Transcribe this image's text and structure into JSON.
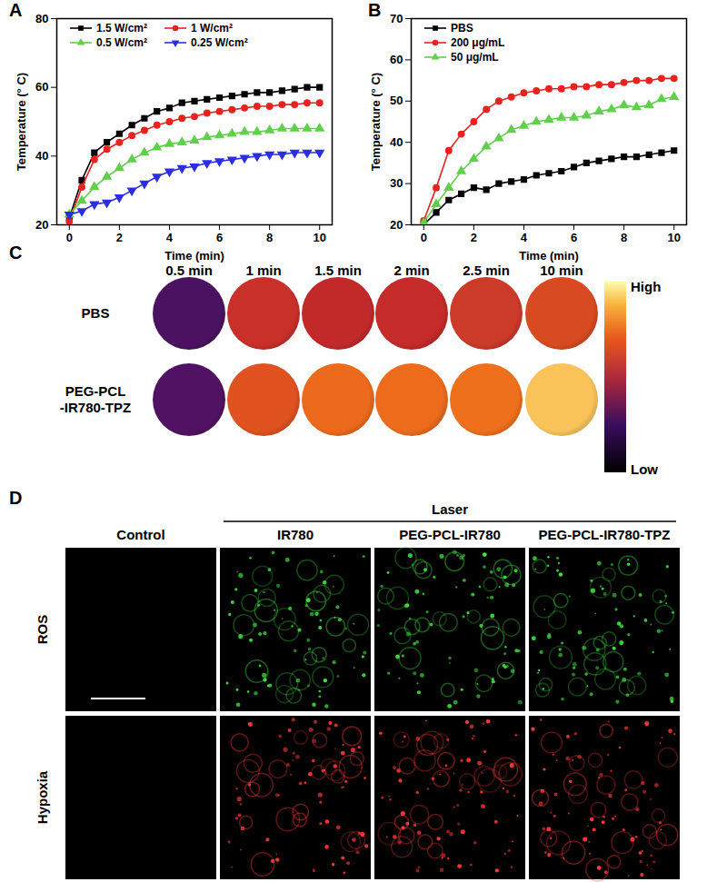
{
  "chart_data": [
    {
      "panel": "A",
      "type": "line",
      "x_label": "Time (min)",
      "y_label": "Temperature (° C)",
      "x": [
        0,
        0.5,
        1,
        1.5,
        2,
        2.5,
        3,
        3.5,
        4,
        4.5,
        5,
        5.5,
        6,
        6.5,
        7,
        7.5,
        8,
        8.5,
        9,
        9.5,
        10
      ],
      "xlim": [
        -0.5,
        10.5
      ],
      "xticks": [
        0,
        2,
        4,
        6,
        8,
        10
      ],
      "ylim": [
        20,
        80
      ],
      "yticks": [
        20,
        40,
        60,
        80
      ],
      "legend": "top-left",
      "series": [
        {
          "name": "1.5 W/cm²",
          "color": "#000000",
          "marker": "square",
          "values": [
            22,
            33,
            41,
            44,
            46.5,
            49,
            51,
            53,
            54,
            55.5,
            56,
            56.5,
            57,
            57.5,
            58,
            58.5,
            58.5,
            59,
            59.5,
            60,
            60
          ]
        },
        {
          "name": "1 W/cm²",
          "color": "#e8231f",
          "marker": "circle",
          "values": [
            21,
            31,
            39,
            42,
            44,
            46,
            47.5,
            49,
            50,
            51,
            51.5,
            52.5,
            53,
            53.5,
            54,
            54.5,
            54.5,
            55,
            55,
            55.5,
            55.5
          ]
        },
        {
          "name": "0.5 W/cm²",
          "color": "#5fd04a",
          "marker": "triangle",
          "values": [
            23,
            27,
            31,
            34,
            36.5,
            39,
            41,
            42.5,
            43.5,
            44,
            44.5,
            45.5,
            46,
            46.5,
            47,
            47,
            47.5,
            48,
            48,
            48,
            48
          ]
        },
        {
          "name": "0.25 W/cm²",
          "color": "#2b2ee0",
          "marker": "triangle-down",
          "values": [
            23,
            24,
            26,
            26.5,
            28,
            30,
            32,
            34,
            35.5,
            36.5,
            37,
            38,
            38.5,
            39,
            39.5,
            40,
            40.5,
            40.5,
            41,
            41,
            41
          ]
        }
      ]
    },
    {
      "panel": "B",
      "type": "line",
      "x_label": "Time (min)",
      "y_label": "Temperature (° C)",
      "x": [
        0,
        0.5,
        1,
        1.5,
        2,
        2.5,
        3,
        3.5,
        4,
        4.5,
        5,
        5.5,
        6,
        6.5,
        7,
        7.5,
        8,
        8.5,
        9,
        9.5,
        10
      ],
      "xlim": [
        -0.5,
        10.5
      ],
      "xticks": [
        0,
        2,
        4,
        6,
        8,
        10
      ],
      "ylim": [
        20,
        70
      ],
      "yticks": [
        20,
        30,
        40,
        50,
        60,
        70
      ],
      "legend": "top-left",
      "series": [
        {
          "name": "PBS",
          "color": "#000000",
          "marker": "square",
          "values": [
            20,
            23,
            26,
            27.5,
            29,
            28.5,
            30,
            30.5,
            31,
            32,
            32.5,
            33,
            34,
            35,
            35.5,
            36,
            36.5,
            36.5,
            37,
            37.5,
            38
          ]
        },
        {
          "name": "200 μg/mL",
          "color": "#e8231f",
          "marker": "circle",
          "values": [
            21,
            29,
            38,
            42,
            45,
            48,
            50,
            51,
            52,
            52.5,
            53,
            53,
            53.5,
            53.5,
            54,
            54,
            54.5,
            55,
            55,
            55.5,
            55.5
          ]
        },
        {
          "name": "50 μg/mL",
          "color": "#5fd04a",
          "marker": "triangle",
          "values": [
            20.5,
            25,
            29,
            33,
            36,
            39,
            41,
            43,
            44,
            45,
            45.5,
            46,
            46,
            46.5,
            47.5,
            48,
            49,
            48.5,
            49,
            50.5,
            51
          ]
        }
      ]
    }
  ],
  "thermal_images": {
    "panel": "C",
    "times": [
      "0.5 min",
      "1 min",
      "1.5 min",
      "2 min",
      "2.5 min",
      "10 min"
    ],
    "rows": [
      {
        "label_lines": [
          "PBS"
        ],
        "colors": [
          "#4c1262",
          "#c9302a",
          "#c22a2a",
          "#c42b2a",
          "#cc3a2a",
          "#d84a22"
        ]
      },
      {
        "label_lines": [
          "PEG-PCL",
          "-IR780-TPZ"
        ],
        "colors": [
          "#521263",
          "#e0521f",
          "#ec6a1c",
          "#ec6c1c",
          "#ef701c",
          "#f9c35a"
        ]
      }
    ],
    "colorbar": {
      "high": "High",
      "low": "Low"
    }
  },
  "microscopy": {
    "panel": "D",
    "group_label": "Laser",
    "columns": [
      {
        "label": "Control",
        "laser": false
      },
      {
        "label": "IR780",
        "laser": true
      },
      {
        "label": "PEG-PCL-IR780",
        "laser": true
      },
      {
        "label": "PEG-PCL-IR780-TPZ",
        "laser": true
      }
    ],
    "rows": [
      {
        "label": "ROS",
        "color": "#3fe03f"
      },
      {
        "label": "Hypoxia",
        "color": "#ff3a3a"
      }
    ]
  }
}
